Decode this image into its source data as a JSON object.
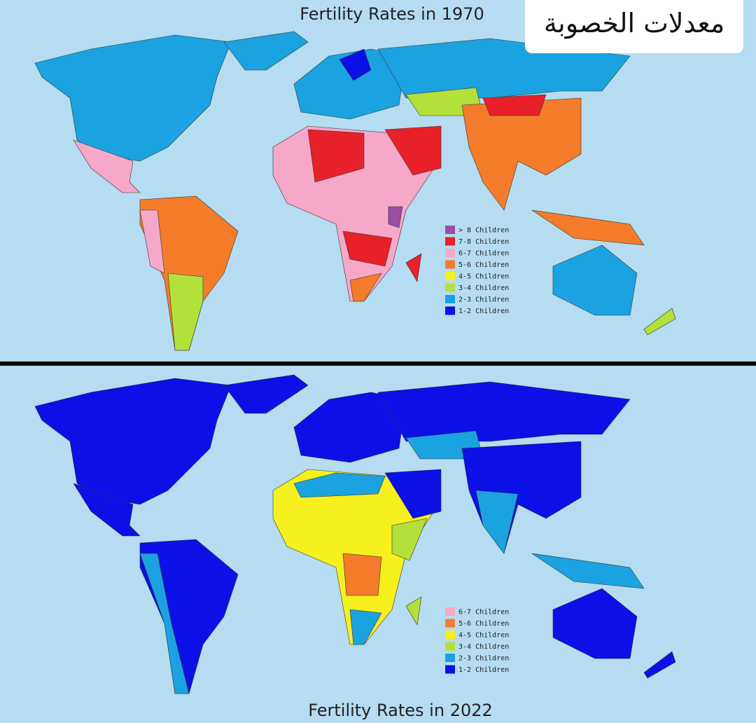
{
  "overlay_title": "معدلات الخصوبة",
  "maps": [
    {
      "title": "Fertility Rates in 1970",
      "legend": [
        {
          "label": "> 8 Children",
          "color": "#9b4ea6"
        },
        {
          "label": "7-8 Children",
          "color": "#e8202a"
        },
        {
          "label": "6-7 Children",
          "color": "#f7a8c8"
        },
        {
          "label": "5-6 Children",
          "color": "#f47c2a"
        },
        {
          "label": "4-5 Children",
          "color": "#f6f01e"
        },
        {
          "label": "3-4 Children",
          "color": "#b3e03a"
        },
        {
          "label": "2-3 Children",
          "color": "#1aa3e0"
        },
        {
          "label": "1-2 Children",
          "color": "#0a10e6"
        }
      ]
    },
    {
      "title": "Fertility Rates in 2022",
      "legend": [
        {
          "label": "6-7 Children",
          "color": "#f7a8c8"
        },
        {
          "label": "5-6 Children",
          "color": "#f47c2a"
        },
        {
          "label": "4-5 Children",
          "color": "#f6f01e"
        },
        {
          "label": "3-4 Children",
          "color": "#b3e03a"
        },
        {
          "label": "2-3 Children",
          "color": "#1aa3e0"
        },
        {
          "label": "1-2 Children",
          "color": "#0a10e6"
        }
      ]
    }
  ]
}
